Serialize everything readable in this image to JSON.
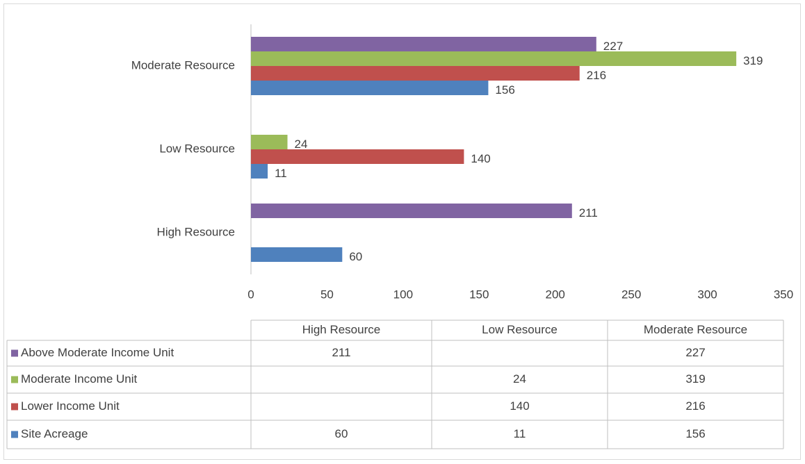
{
  "chart_data": {
    "type": "bar",
    "orientation": "horizontal",
    "categories": [
      "High Resource",
      "Low Resource",
      "Moderate Resource"
    ],
    "series": [
      {
        "name": "Above Moderate Income Unit",
        "color": "#8064a2",
        "values": [
          211,
          null,
          227
        ]
      },
      {
        "name": "Moderate Income Unit",
        "color": "#9bbb59",
        "values": [
          null,
          24,
          319
        ]
      },
      {
        "name": "Lower Income Unit",
        "color": "#c0504d",
        "values": [
          null,
          140,
          216
        ]
      },
      {
        "name": "Site Acreage",
        "color": "#4f81bd",
        "values": [
          60,
          11,
          156
        ]
      }
    ],
    "xlim": [
      0,
      350
    ],
    "xticks": [
      0,
      50,
      100,
      150,
      200,
      250,
      300,
      350
    ],
    "grid": false,
    "data_table": true
  }
}
